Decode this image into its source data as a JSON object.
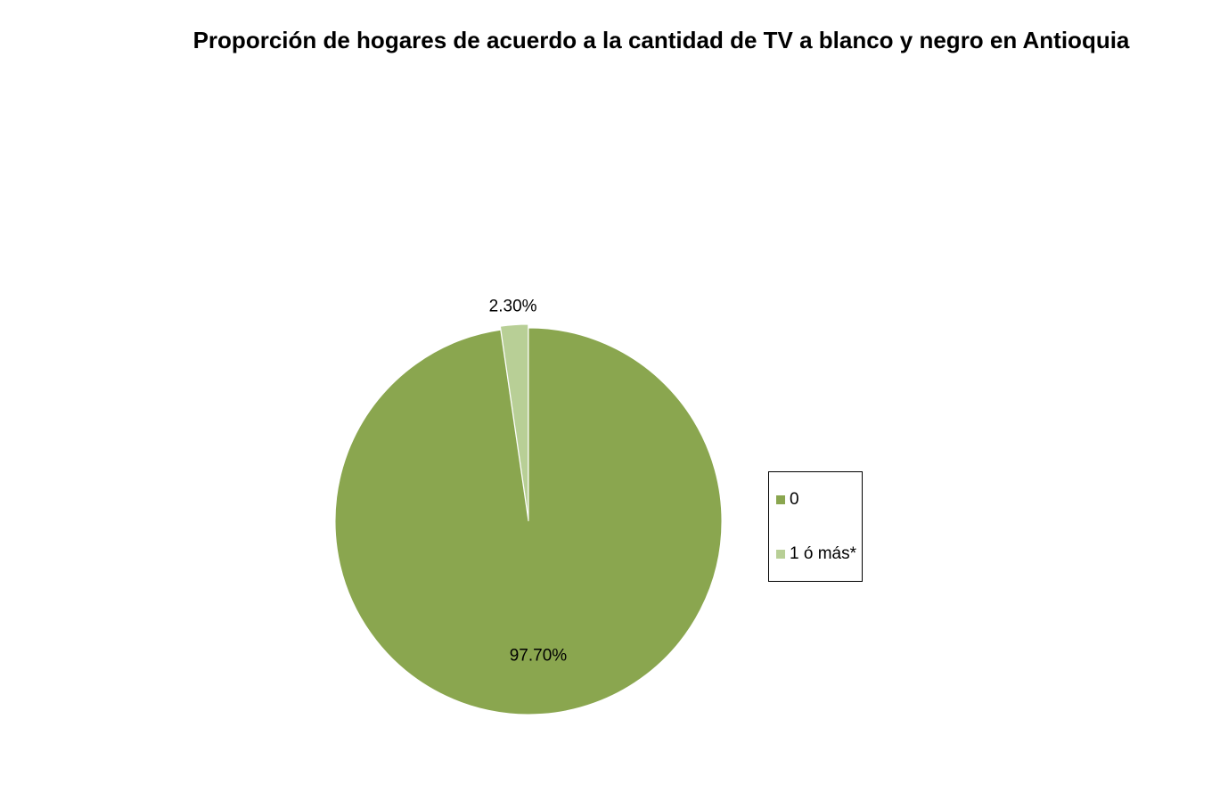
{
  "chart_data": {
    "type": "pie",
    "title": "Proporción de hogares de acuerdo a la cantidad de TV a blanco y negro en Antioquia",
    "categories": [
      "0",
      "1 ó más*"
    ],
    "values": [
      97.7,
      2.3
    ],
    "value_labels": [
      "97.70%",
      "2.30%"
    ],
    "colors": [
      "#8aa64f",
      "#b8cf96"
    ],
    "legend": "right"
  }
}
